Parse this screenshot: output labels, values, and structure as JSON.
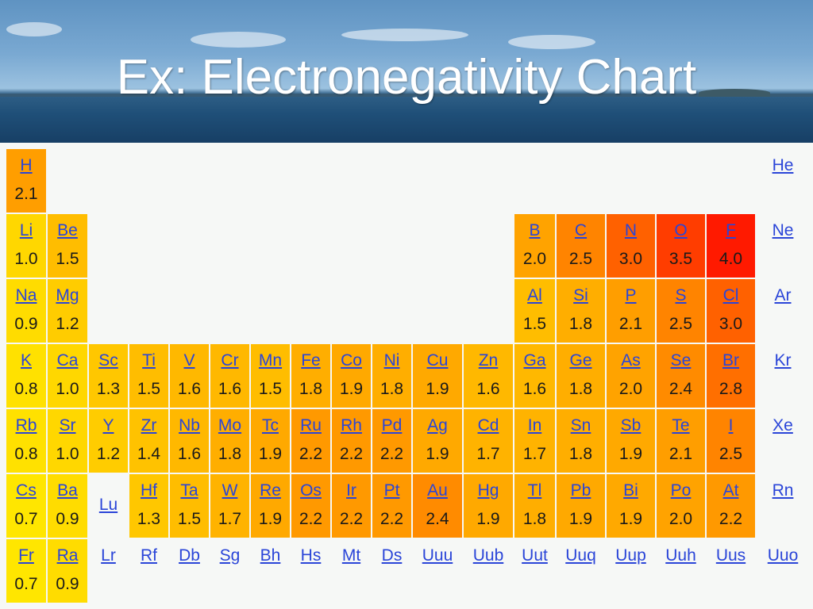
{
  "title": "Ex: Electronegativity Chart",
  "chart_data": {
    "type": "table",
    "title": "Ex: Electronegativity Chart",
    "elements": [
      {
        "symbol": "H",
        "row": 1,
        "col": 1,
        "en": 2.1
      },
      {
        "symbol": "He",
        "row": 1,
        "col": 19,
        "en": null
      },
      {
        "symbol": "Li",
        "row": 2,
        "col": 1,
        "en": 1.0
      },
      {
        "symbol": "Be",
        "row": 2,
        "col": 2,
        "en": 1.5
      },
      {
        "symbol": "B",
        "row": 2,
        "col": 13,
        "en": 2.0
      },
      {
        "symbol": "C",
        "row": 2,
        "col": 14,
        "en": 2.5
      },
      {
        "symbol": "N",
        "row": 2,
        "col": 15,
        "en": 3.0
      },
      {
        "symbol": "O",
        "row": 2,
        "col": 16,
        "en": 3.5
      },
      {
        "symbol": "F",
        "row": 2,
        "col": 17,
        "en": 4.0
      },
      {
        "symbol": "Ne",
        "row": 2,
        "col": 19,
        "en": null
      },
      {
        "symbol": "Na",
        "row": 3,
        "col": 1,
        "en": 0.9
      },
      {
        "symbol": "Mg",
        "row": 3,
        "col": 2,
        "en": 1.2
      },
      {
        "symbol": "Al",
        "row": 3,
        "col": 13,
        "en": 1.5
      },
      {
        "symbol": "Si",
        "row": 3,
        "col": 14,
        "en": 1.8
      },
      {
        "symbol": "P",
        "row": 3,
        "col": 15,
        "en": 2.1
      },
      {
        "symbol": "S",
        "row": 3,
        "col": 16,
        "en": 2.5
      },
      {
        "symbol": "Cl",
        "row": 3,
        "col": 17,
        "en": 3.0
      },
      {
        "symbol": "Ar",
        "row": 3,
        "col": 19,
        "en": null
      },
      {
        "symbol": "K",
        "row": 4,
        "col": 1,
        "en": 0.8
      },
      {
        "symbol": "Ca",
        "row": 4,
        "col": 2,
        "en": 1.0
      },
      {
        "symbol": "Sc",
        "row": 4,
        "col": 3,
        "en": 1.3
      },
      {
        "symbol": "Ti",
        "row": 4,
        "col": 4,
        "en": 1.5
      },
      {
        "symbol": "V",
        "row": 4,
        "col": 5,
        "en": 1.6
      },
      {
        "symbol": "Cr",
        "row": 4,
        "col": 6,
        "en": 1.6
      },
      {
        "symbol": "Mn",
        "row": 4,
        "col": 7,
        "en": 1.5
      },
      {
        "symbol": "Fe",
        "row": 4,
        "col": 8,
        "en": 1.8
      },
      {
        "symbol": "Co",
        "row": 4,
        "col": 9,
        "en": 1.9
      },
      {
        "symbol": "Ni",
        "row": 4,
        "col": 10,
        "en": 1.8
      },
      {
        "symbol": "Cu",
        "row": 4,
        "col": 11,
        "en": 1.9
      },
      {
        "symbol": "Zn",
        "row": 4,
        "col": 12,
        "en": 1.6
      },
      {
        "symbol": "Ga",
        "row": 4,
        "col": 13,
        "en": 1.6
      },
      {
        "symbol": "Ge",
        "row": 4,
        "col": 14,
        "en": 1.8
      },
      {
        "symbol": "As",
        "row": 4,
        "col": 15,
        "en": 2.0
      },
      {
        "symbol": "Se",
        "row": 4,
        "col": 16,
        "en": 2.4
      },
      {
        "symbol": "Br",
        "row": 4,
        "col": 17,
        "en": 2.8
      },
      {
        "symbol": "Kr",
        "row": 4,
        "col": 19,
        "en": null
      },
      {
        "symbol": "Rb",
        "row": 5,
        "col": 1,
        "en": 0.8
      },
      {
        "symbol": "Sr",
        "row": 5,
        "col": 2,
        "en": 1.0
      },
      {
        "symbol": "Y",
        "row": 5,
        "col": 3,
        "en": 1.2
      },
      {
        "symbol": "Zr",
        "row": 5,
        "col": 4,
        "en": 1.4
      },
      {
        "symbol": "Nb",
        "row": 5,
        "col": 5,
        "en": 1.6
      },
      {
        "symbol": "Mo",
        "row": 5,
        "col": 6,
        "en": 1.8
      },
      {
        "symbol": "Tc",
        "row": 5,
        "col": 7,
        "en": 1.9
      },
      {
        "symbol": "Ru",
        "row": 5,
        "col": 8,
        "en": 2.2
      },
      {
        "symbol": "Rh",
        "row": 5,
        "col": 9,
        "en": 2.2
      },
      {
        "symbol": "Pd",
        "row": 5,
        "col": 10,
        "en": 2.2
      },
      {
        "symbol": "Ag",
        "row": 5,
        "col": 11,
        "en": 1.9
      },
      {
        "symbol": "Cd",
        "row": 5,
        "col": 12,
        "en": 1.7
      },
      {
        "symbol": "In",
        "row": 5,
        "col": 13,
        "en": 1.7
      },
      {
        "symbol": "Sn",
        "row": 5,
        "col": 14,
        "en": 1.8
      },
      {
        "symbol": "Sb",
        "row": 5,
        "col": 15,
        "en": 1.9
      },
      {
        "symbol": "Te",
        "row": 5,
        "col": 16,
        "en": 2.1
      },
      {
        "symbol": "I",
        "row": 5,
        "col": 17,
        "en": 2.5
      },
      {
        "symbol": "Xe",
        "row": 5,
        "col": 19,
        "en": null
      },
      {
        "symbol": "Cs",
        "row": 6,
        "col": 1,
        "en": 0.7
      },
      {
        "symbol": "Ba",
        "row": 6,
        "col": 2,
        "en": 0.9
      },
      {
        "symbol": "Lu",
        "row": 6,
        "col": 3,
        "en": null
      },
      {
        "symbol": "Hf",
        "row": 6,
        "col": 4,
        "en": 1.3
      },
      {
        "symbol": "Ta",
        "row": 6,
        "col": 5,
        "en": 1.5
      },
      {
        "symbol": "W",
        "row": 6,
        "col": 6,
        "en": 1.7
      },
      {
        "symbol": "Re",
        "row": 6,
        "col": 7,
        "en": 1.9
      },
      {
        "symbol": "Os",
        "row": 6,
        "col": 8,
        "en": 2.2
      },
      {
        "symbol": "Ir",
        "row": 6,
        "col": 9,
        "en": 2.2
      },
      {
        "symbol": "Pt",
        "row": 6,
        "col": 10,
        "en": 2.2
      },
      {
        "symbol": "Au",
        "row": 6,
        "col": 11,
        "en": 2.4
      },
      {
        "symbol": "Hg",
        "row": 6,
        "col": 12,
        "en": 1.9
      },
      {
        "symbol": "Tl",
        "row": 6,
        "col": 13,
        "en": 1.8
      },
      {
        "symbol": "Pb",
        "row": 6,
        "col": 14,
        "en": 1.9
      },
      {
        "symbol": "Bi",
        "row": 6,
        "col": 15,
        "en": 1.9
      },
      {
        "symbol": "Po",
        "row": 6,
        "col": 16,
        "en": 2.0
      },
      {
        "symbol": "At",
        "row": 6,
        "col": 17,
        "en": 2.2
      },
      {
        "symbol": "Rn",
        "row": 6,
        "col": 19,
        "en": null
      },
      {
        "symbol": "Fr",
        "row": 7,
        "col": 1,
        "en": 0.7
      },
      {
        "symbol": "Ra",
        "row": 7,
        "col": 2,
        "en": 0.9
      },
      {
        "symbol": "Lr",
        "row": 7,
        "col": 3,
        "en": null
      },
      {
        "symbol": "Rf",
        "row": 7,
        "col": 4,
        "en": null
      },
      {
        "symbol": "Db",
        "row": 7,
        "col": 5,
        "en": null
      },
      {
        "symbol": "Sg",
        "row": 7,
        "col": 6,
        "en": null
      },
      {
        "symbol": "Bh",
        "row": 7,
        "col": 7,
        "en": null
      },
      {
        "symbol": "Hs",
        "row": 7,
        "col": 8,
        "en": null
      },
      {
        "symbol": "Mt",
        "row": 7,
        "col": 9,
        "en": null
      },
      {
        "symbol": "Ds",
        "row": 7,
        "col": 10,
        "en": null
      },
      {
        "symbol": "Uuu",
        "row": 7,
        "col": 11,
        "en": null
      },
      {
        "symbol": "Uub",
        "row": 7,
        "col": 12,
        "en": null
      },
      {
        "symbol": "Uut",
        "row": 7,
        "col": 13,
        "en": null
      },
      {
        "symbol": "Uuq",
        "row": 7,
        "col": 14,
        "en": null
      },
      {
        "symbol": "Uup",
        "row": 7,
        "col": 15,
        "en": null
      },
      {
        "symbol": "Uuh",
        "row": 7,
        "col": 16,
        "en": null
      },
      {
        "symbol": "Uus",
        "row": 7,
        "col": 17,
        "en": null
      },
      {
        "symbol": "Uuo",
        "row": 7,
        "col": 19,
        "en": null
      }
    ],
    "color_scale": {
      "low": "#ffe600",
      "mid": "#ff9a00",
      "high": "#ff1a00",
      "range": [
        0.7,
        4.0
      ]
    }
  }
}
